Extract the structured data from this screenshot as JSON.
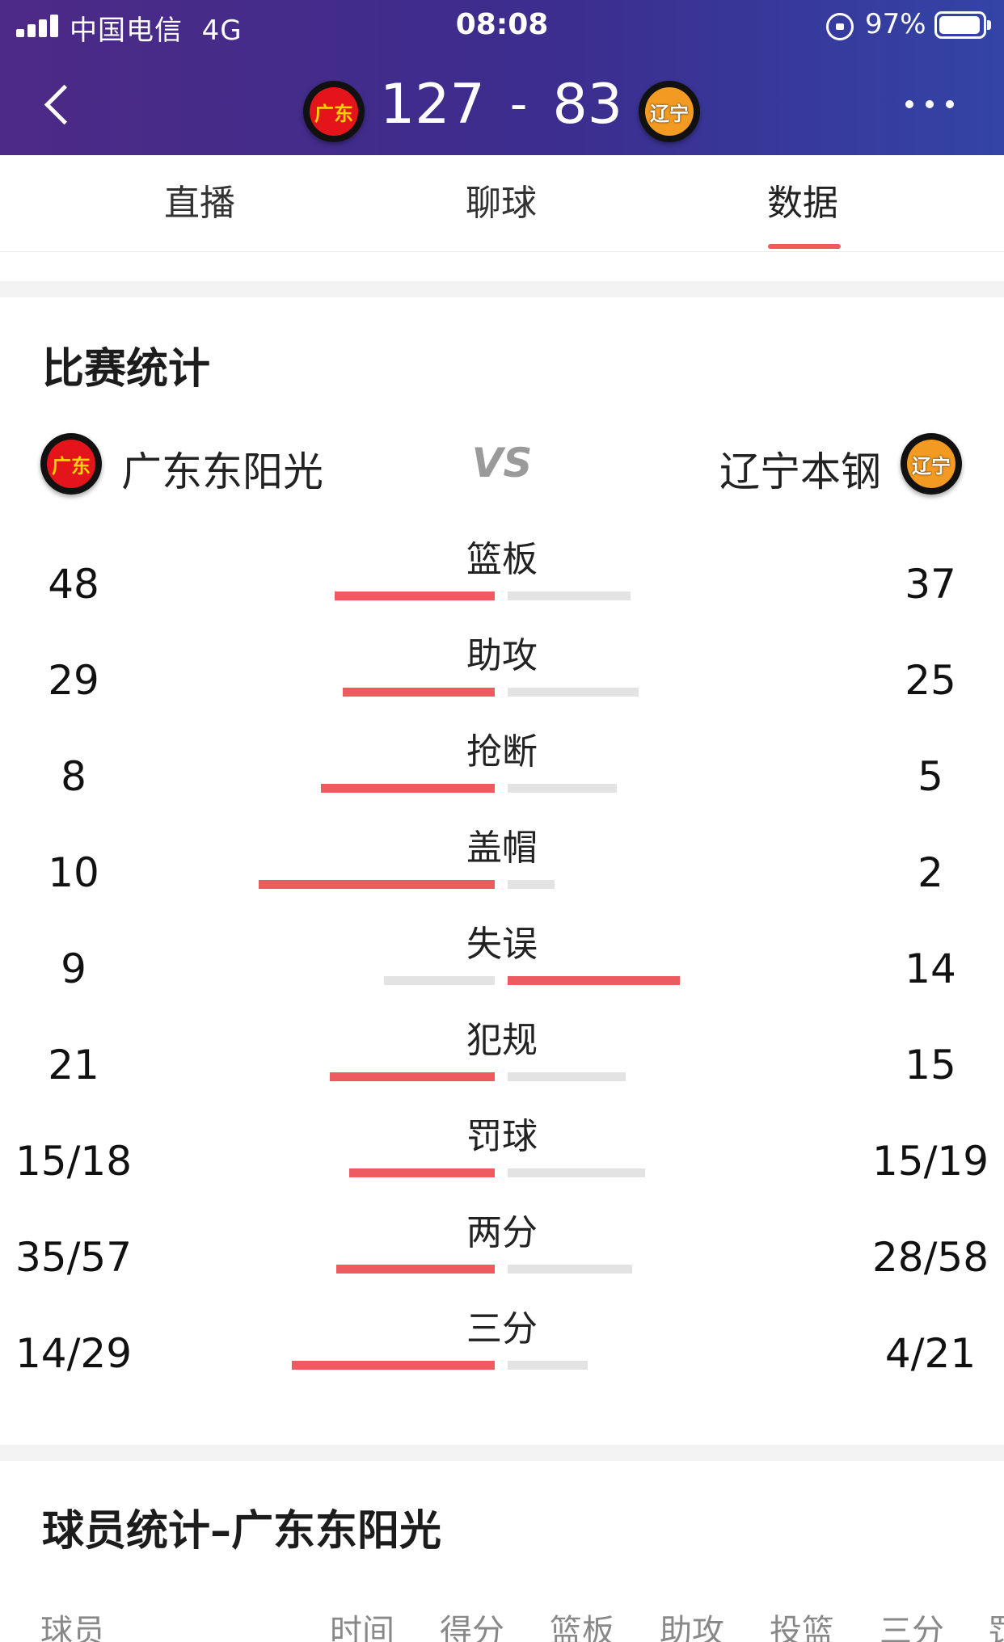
{
  "status_bar": {
    "carrier": "中国电信",
    "network": "4G",
    "time": "08:08",
    "battery": "97%",
    "battery_level": 0.97
  },
  "scoreboard": {
    "home_logo_text": "广东",
    "away_logo_text": "辽宁",
    "home_score": "127",
    "separator": "-",
    "away_score": "83"
  },
  "tabs": [
    {
      "label": "直播",
      "active": false
    },
    {
      "label": "聊球",
      "active": false
    },
    {
      "label": "数据",
      "active": true
    }
  ],
  "colors": {
    "header_gradient_start": "#4d2a86",
    "header_gradient_end": "#3344a6",
    "accent": "#ee5b5f",
    "bar_inactive": "#e3e3e3"
  },
  "match_stats": {
    "title": "比赛统计",
    "home_team": "广东东阳光",
    "away_team": "辽宁本钢",
    "vs": "VS",
    "rows": [
      {
        "label": "篮板",
        "home": "48",
        "away": "37",
        "home_val": 48,
        "away_val": 37,
        "leader": "home"
      },
      {
        "label": "助攻",
        "home": "29",
        "away": "25",
        "home_val": 29,
        "away_val": 25,
        "leader": "home"
      },
      {
        "label": "抢断",
        "home": "8",
        "away": "5",
        "home_val": 8,
        "away_val": 5,
        "leader": "home"
      },
      {
        "label": "盖帽",
        "home": "10",
        "away": "2",
        "home_val": 10,
        "away_val": 2,
        "leader": "home"
      },
      {
        "label": "失误",
        "home": "9",
        "away": "14",
        "home_val": 9,
        "away_val": 14,
        "leader": "away"
      },
      {
        "label": "犯规",
        "home": "21",
        "away": "15",
        "home_val": 21,
        "away_val": 15,
        "leader": "home"
      },
      {
        "label": "罚球",
        "home": "15/18",
        "away": "15/19",
        "home_val": 0.833,
        "away_val": 0.789,
        "leader": "home"
      },
      {
        "label": "两分",
        "home": "35/57",
        "away": "28/58",
        "home_val": 0.614,
        "away_val": 0.483,
        "leader": "home"
      },
      {
        "label": "三分",
        "home": "14/29",
        "away": "4/21",
        "home_val": 0.483,
        "away_val": 0.19,
        "leader": "home"
      }
    ]
  },
  "player_stats": {
    "title": "球员统计–广东东阳光",
    "columns": [
      "球员",
      "时间",
      "得分",
      "篮板",
      "助攻",
      "投篮",
      "三分",
      "罚"
    ]
  }
}
